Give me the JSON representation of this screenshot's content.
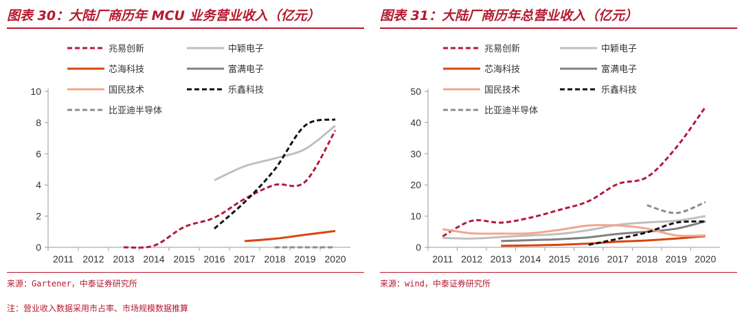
{
  "colors": {
    "accent": "#b5182e",
    "series": {
      "zhaoyi": "#b5183a",
      "zhongying": "#bfbfbf",
      "xinhai": "#d9430e",
      "fuman": "#7f7f7f",
      "guomin": "#f4a58b",
      "lexin": "#111111",
      "byd": "#8c8c8c"
    }
  },
  "left": {
    "title": "图表 30：大陆厂商历年 MCU 业务营业收入（亿元）",
    "source": "来源：Gartener，中泰证券研究所"
  },
  "right": {
    "title": "图表 31：大陆厂商历年总营业收入（亿元）",
    "source": "来源：wind，中泰证券研究所"
  },
  "note": "注：营业收入数据采用市占率、市场规模数据推算",
  "chart_data": [
    {
      "type": "line",
      "title": "图表 30：大陆厂商历年 MCU 业务营业收入（亿元）",
      "x": [
        "2011",
        "2012",
        "2013",
        "2014",
        "2015",
        "2016",
        "2017",
        "2018",
        "2019",
        "2020"
      ],
      "ylim": [
        0,
        10
      ],
      "yticks": [
        0,
        2,
        4,
        6,
        8,
        10
      ],
      "grid": false,
      "legend_position": "top",
      "series": [
        {
          "name": "兆易创新",
          "key": "zhaoyi",
          "dash": "dash",
          "values": [
            null,
            null,
            0.0,
            0.1,
            1.3,
            1.9,
            3.1,
            4.0,
            4.2,
            7.5
          ]
        },
        {
          "name": "中颖电子",
          "key": "zhongying",
          "dash": "solid",
          "values": [
            null,
            null,
            null,
            null,
            null,
            4.3,
            5.2,
            5.7,
            6.3,
            7.8
          ]
        },
        {
          "name": "芯海科技",
          "key": "xinhai",
          "dash": "solid",
          "values": [
            null,
            null,
            null,
            null,
            null,
            null,
            0.4,
            0.55,
            0.8,
            1.05
          ]
        },
        {
          "name": "富满电子",
          "key": "fuman",
          "dash": "solid",
          "values": [
            null,
            null,
            null,
            null,
            null,
            null,
            null,
            null,
            null,
            null
          ]
        },
        {
          "name": "国民技术",
          "key": "guomin",
          "dash": "solid",
          "values": [
            null,
            null,
            null,
            null,
            null,
            null,
            null,
            null,
            null,
            null
          ]
        },
        {
          "name": "乐鑫科技",
          "key": "lexin",
          "dash": "dash",
          "values": [
            null,
            null,
            null,
            null,
            null,
            1.2,
            2.9,
            5.0,
            7.8,
            8.2
          ]
        },
        {
          "name": "比亚迪半导体",
          "key": "byd",
          "dash": "dash",
          "values": [
            null,
            null,
            null,
            null,
            null,
            null,
            null,
            0.0,
            0.0,
            0.0
          ]
        }
      ]
    },
    {
      "type": "line",
      "title": "图表 31：大陆厂商历年总营业收入（亿元）",
      "x": [
        "2011",
        "2012",
        "2013",
        "2014",
        "2015",
        "2016",
        "2017",
        "2018",
        "2019",
        "2020"
      ],
      "ylim": [
        0,
        50
      ],
      "yticks": [
        0,
        10,
        20,
        30,
        40,
        50
      ],
      "grid": false,
      "legend_position": "top",
      "series": [
        {
          "name": "兆易创新",
          "key": "zhaoyi",
          "dash": "dash",
          "values": [
            3.5,
            8.5,
            7.9,
            9.5,
            12.0,
            14.8,
            20.3,
            22.5,
            32.0,
            45.0
          ]
        },
        {
          "name": "中颖电子",
          "key": "zhongying",
          "dash": "solid",
          "values": [
            3.0,
            2.8,
            3.3,
            3.8,
            4.3,
            5.5,
            7.2,
            8.0,
            8.5,
            10.0
          ]
        },
        {
          "name": "芯海科技",
          "key": "xinhai",
          "dash": "solid",
          "values": [
            null,
            null,
            0.5,
            0.6,
            0.8,
            1.2,
            1.8,
            2.2,
            2.8,
            3.6
          ]
        },
        {
          "name": "富满电子",
          "key": "fuman",
          "dash": "solid",
          "values": [
            null,
            null,
            2.0,
            2.3,
            2.6,
            3.2,
            4.3,
            5.0,
            6.0,
            8.3
          ]
        },
        {
          "name": "国民技术",
          "key": "guomin",
          "dash": "solid",
          "values": [
            5.8,
            4.5,
            4.4,
            4.5,
            5.6,
            7.0,
            7.0,
            6.0,
            3.8,
            3.8
          ]
        },
        {
          "name": "乐鑫科技",
          "key": "lexin",
          "dash": "dash",
          "values": [
            null,
            null,
            null,
            null,
            null,
            0.8,
            2.7,
            4.8,
            7.9,
            8.3
          ]
        },
        {
          "name": "比亚迪半导体",
          "key": "byd",
          "dash": "dash",
          "values": [
            null,
            null,
            null,
            null,
            null,
            null,
            null,
            13.5,
            11.0,
            14.5
          ]
        }
      ]
    }
  ]
}
